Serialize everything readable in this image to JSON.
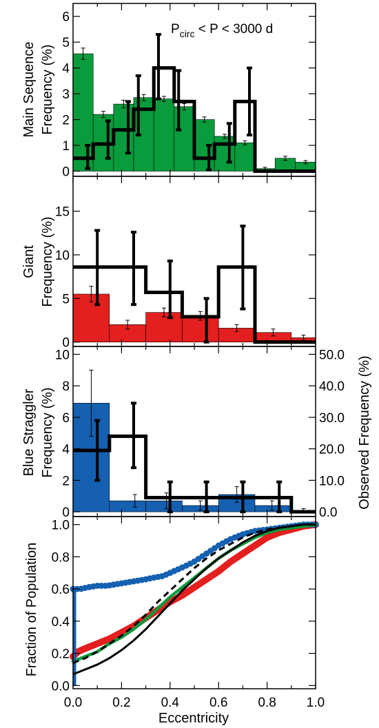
{
  "colors": {
    "main_sequence": "#0a9b3c",
    "giant": "#e41f1f",
    "blue_straggler": "#1560b0",
    "observed": "#000000",
    "model_dashed": "#000000",
    "cdf_green": "#0a9b3c"
  },
  "chart_data": [
    {
      "type": "bar",
      "panel": "main_sequence",
      "annotation_main": "P",
      "annotation_sub": "circ",
      "annotation_rest": " < P < 3000 d",
      "ylabel_line1": "Main Sequence",
      "ylabel_line2": "Frequency (%)",
      "ylim": [
        -0.2,
        6.5
      ],
      "yticks": [
        0,
        1,
        2,
        3,
        4,
        5,
        6
      ],
      "ytick_labels": [
        "0",
        "1",
        "2",
        "3",
        "4",
        "5",
        "6"
      ],
      "bin_edges": [
        0.0,
        0.083,
        0.167,
        0.25,
        0.333,
        0.417,
        0.5,
        0.583,
        0.667,
        0.75,
        0.833,
        0.917,
        1.0
      ],
      "model_values": [
        4.55,
        2.2,
        2.6,
        2.85,
        2.8,
        2.5,
        2.0,
        1.35,
        1.1,
        0.1,
        0.5,
        0.35
      ],
      "model_errors": [
        0.22,
        0.12,
        0.15,
        0.12,
        0.1,
        0.12,
        0.1,
        0.08,
        0.08,
        0.05,
        0.08,
        0.06
      ],
      "observed_edges": [
        0.0,
        0.083,
        0.167,
        0.25,
        0.333,
        0.417,
        0.5,
        0.583,
        0.667,
        0.75,
        0.833,
        1.0
      ],
      "observed_values": [
        0.5,
        1.05,
        1.6,
        2.4,
        4.0,
        2.7,
        0.5,
        1.05,
        2.7,
        0.0,
        0.0
      ],
      "observed_err_lo": [
        0.4,
        0.55,
        0.9,
        1.0,
        1.2,
        1.1,
        0.45,
        0.7,
        1.3,
        0,
        0
      ],
      "observed_err_hi": [
        0.5,
        0.9,
        1.1,
        1.3,
        1.3,
        1.2,
        0.5,
        0.8,
        1.3,
        0,
        0
      ],
      "observed_err_x": [
        0.083,
        0.167,
        0.25,
        0.292,
        0.375,
        0.458,
        0.583,
        0.667,
        0.75,
        null,
        null
      ]
    },
    {
      "type": "bar",
      "panel": "giant",
      "ylabel_line1": "Giant",
      "ylabel_line2": "Frequency (%)",
      "ylim": [
        -0.5,
        19
      ],
      "yticks": [
        0,
        5,
        10,
        15
      ],
      "ytick_labels": [
        "0",
        "5",
        "10",
        "15"
      ],
      "bin_edges": [
        0.0,
        0.167,
        0.333,
        0.5,
        0.667,
        0.833,
        1.0
      ],
      "model_values": [
        5.5,
        2.0,
        3.4,
        3.0,
        1.6,
        1.1,
        0.5
      ],
      "model_edges_plot": [
        0.0,
        0.15,
        0.3,
        0.45,
        0.6,
        0.75,
        0.9,
        1.0
      ],
      "model_errors": [
        0.9,
        0.5,
        0.5,
        0.5,
        0.4,
        0.4,
        0.3
      ],
      "model_err_x": [
        0.075,
        0.225,
        0.375,
        0.525,
        0.675,
        0.825,
        0.95
      ],
      "observed_edges": [
        0.0,
        0.3,
        0.45,
        0.6,
        0.75,
        1.0
      ],
      "observed_values": [
        8.6,
        5.7,
        2.9,
        8.6,
        0.0
      ],
      "observed_err": [
        [
          0.1,
          4.3,
          12.8
        ],
        [
          0.25,
          4.3,
          12.6
        ],
        [
          0.4,
          2.8,
          9.3
        ],
        [
          0.55,
          0.0,
          5.0
        ],
        [
          0.7,
          3.8,
          13.3
        ]
      ]
    },
    {
      "type": "bar",
      "panel": "blue_straggler",
      "ylabel_line1": "Blue Straggler",
      "ylabel_line2": "Frequency (%)",
      "ylabel_right": "Observed Frequency (%)",
      "ylim": [
        -0.3,
        10.5
      ],
      "yticks": [
        0,
        2,
        4,
        6,
        8,
        10
      ],
      "ytick_labels": [
        "0",
        "2",
        "4",
        "6",
        "8",
        "10"
      ],
      "yticks_right": [
        0,
        10,
        20,
        30,
        40,
        50
      ],
      "ytick_labels_right": [
        "0.0",
        "10.0",
        "20.0",
        "30.0",
        "40.0",
        "50.0"
      ],
      "model_edges_plot": [
        0.0,
        0.15,
        0.3,
        0.45,
        0.6,
        0.75,
        0.9,
        1.0
      ],
      "model_values": [
        6.9,
        0.7,
        0.7,
        0.4,
        1.1,
        0.4,
        0.1
      ],
      "model_errors": [
        2.1,
        0.4,
        0.5,
        0.3,
        0.5,
        0.3,
        0.1
      ],
      "model_err_x": [
        0.075,
        0.255,
        0.385,
        0.525,
        0.675,
        0.82,
        0.95
      ],
      "observed_edges": [
        0.0,
        0.15,
        0.3,
        0.9,
        1.0
      ],
      "observed_values": [
        3.9,
        4.8,
        0.9,
        0.0
      ],
      "observed_err": [
        [
          0.1,
          2.0,
          5.8
        ],
        [
          0.25,
          2.8,
          6.9
        ],
        [
          0.4,
          0.0,
          1.9
        ],
        [
          0.55,
          0.0,
          1.9
        ],
        [
          0.7,
          0.0,
          1.9
        ],
        [
          0.85,
          0.0,
          1.9
        ]
      ]
    },
    {
      "type": "line",
      "panel": "cumulative",
      "ylabel": "Fraction of Population",
      "xlabel": "Eccentricity",
      "xlim": [
        0.0,
        1.0
      ],
      "ylim": [
        -0.02,
        1.05
      ],
      "xticks": [
        0.0,
        0.2,
        0.4,
        0.6,
        0.8,
        1.0
      ],
      "xtick_labels": [
        "0.0",
        "0.2",
        "0.4",
        "0.6",
        "0.8",
        "1.0"
      ],
      "yticks": [
        0.0,
        0.2,
        0.4,
        0.6,
        0.8,
        1.0
      ],
      "ytick_labels": [
        "0.0",
        "0.2",
        "0.4",
        "0.6",
        "0.8",
        "1.0"
      ],
      "series": [
        {
          "style": "red-points",
          "x": [
            0.0,
            0.02,
            0.05,
            0.1,
            0.15,
            0.2,
            0.25,
            0.3,
            0.35,
            0.4,
            0.45,
            0.5,
            0.55,
            0.6,
            0.65,
            0.7,
            0.75,
            0.8,
            0.85,
            0.9,
            0.95,
            1.0
          ],
          "y": [
            0.18,
            0.21,
            0.23,
            0.26,
            0.29,
            0.33,
            0.37,
            0.42,
            0.47,
            0.52,
            0.56,
            0.61,
            0.66,
            0.71,
            0.77,
            0.82,
            0.87,
            0.92,
            0.95,
            0.97,
            0.99,
            1.0
          ]
        },
        {
          "style": "blue-points",
          "x": [
            0.0,
            0.01,
            0.03,
            0.06,
            0.1,
            0.14,
            0.18,
            0.22,
            0.26,
            0.3,
            0.33,
            0.37,
            0.4,
            0.43,
            0.46,
            0.5,
            0.55,
            0.6,
            0.65,
            0.7,
            0.75,
            0.8,
            0.85,
            0.9,
            0.95,
            1.0
          ],
          "y": [
            0.6,
            0.6,
            0.6,
            0.61,
            0.62,
            0.62,
            0.63,
            0.64,
            0.65,
            0.66,
            0.67,
            0.68,
            0.7,
            0.72,
            0.74,
            0.77,
            0.82,
            0.87,
            0.91,
            0.94,
            0.96,
            0.97,
            0.98,
            0.99,
            1.0,
            1.0
          ]
        },
        {
          "style": "green-points",
          "x": [
            0.0,
            0.05,
            0.1,
            0.15,
            0.2,
            0.25,
            0.3,
            0.35,
            0.4,
            0.45,
            0.5,
            0.55,
            0.6,
            0.65,
            0.7,
            0.75,
            0.8,
            0.85,
            0.9,
            0.95,
            1.0
          ],
          "y": [
            0.15,
            0.18,
            0.21,
            0.26,
            0.3,
            0.35,
            0.41,
            0.48,
            0.55,
            0.61,
            0.67,
            0.73,
            0.79,
            0.84,
            0.88,
            0.92,
            0.95,
            0.97,
            0.98,
            0.99,
            1.0
          ]
        },
        {
          "style": "black-dashed",
          "x": [
            0.0,
            0.05,
            0.1,
            0.15,
            0.2,
            0.25,
            0.3,
            0.35,
            0.4,
            0.45,
            0.5,
            0.55,
            0.6,
            0.65,
            0.7,
            0.75,
            0.8,
            0.85,
            0.9,
            0.95,
            1.0
          ],
          "y": [
            0.14,
            0.17,
            0.21,
            0.26,
            0.31,
            0.37,
            0.44,
            0.52,
            0.59,
            0.66,
            0.73,
            0.79,
            0.84,
            0.88,
            0.92,
            0.95,
            0.97,
            0.98,
            0.99,
            1.0,
            1.0
          ]
        },
        {
          "style": "black-solid",
          "x": [
            0.0,
            0.05,
            0.1,
            0.15,
            0.2,
            0.25,
            0.3,
            0.35,
            0.4,
            0.45,
            0.5,
            0.55,
            0.6,
            0.65,
            0.7,
            0.75,
            0.8,
            0.85,
            0.9,
            0.95,
            1.0
          ],
          "y": [
            0.07,
            0.1,
            0.13,
            0.17,
            0.22,
            0.28,
            0.35,
            0.43,
            0.51,
            0.59,
            0.66,
            0.73,
            0.79,
            0.84,
            0.89,
            0.93,
            0.96,
            0.98,
            0.99,
            1.0,
            1.0
          ]
        },
        {
          "style": "blue-vertical",
          "x": [
            0.0,
            0.0
          ],
          "y": [
            0.0,
            0.6
          ]
        }
      ]
    }
  ]
}
